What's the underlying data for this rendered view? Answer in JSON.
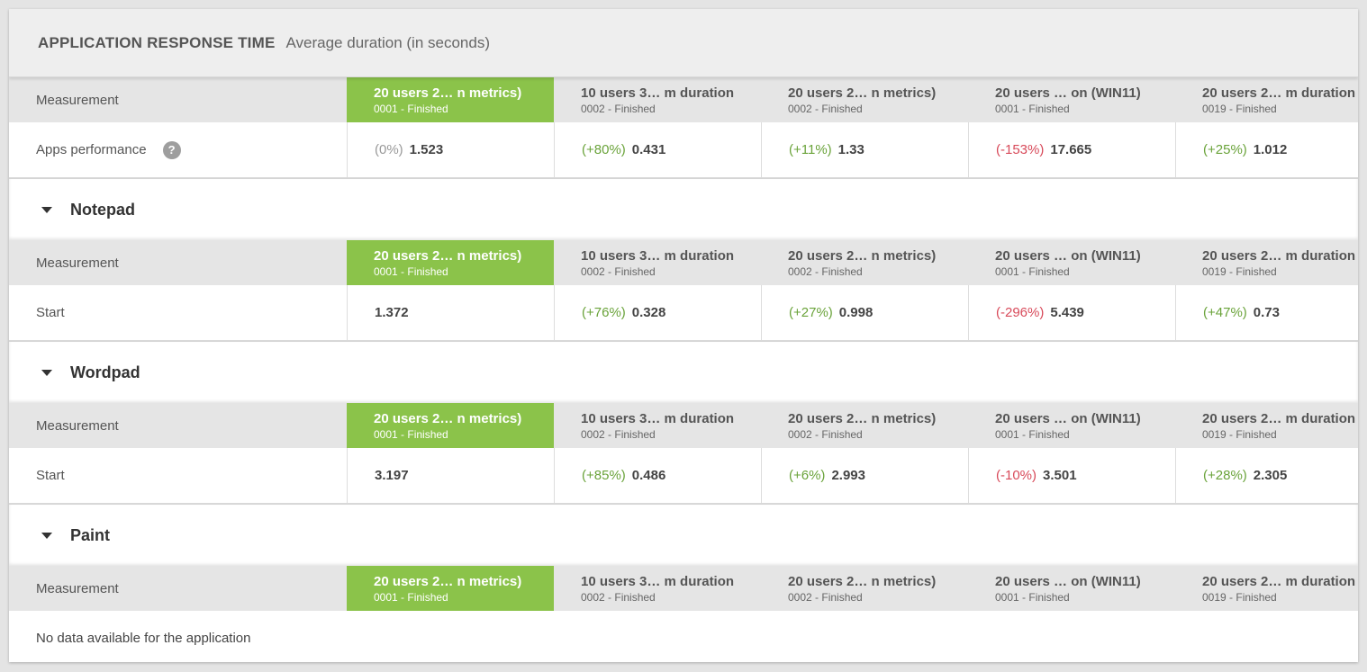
{
  "header": {
    "title": "APPLICATION RESPONSE TIME",
    "subtitle": "Average duration (in seconds)"
  },
  "measurement_label": "Measurement",
  "columns": [
    {
      "name": "20 users 2… n metrics)",
      "status": "0001 - Finished",
      "active": true
    },
    {
      "name": "10 users 3… m duration",
      "status": "0002 - Finished",
      "active": false
    },
    {
      "name": "20 users 2… n metrics)",
      "status": "0002 - Finished",
      "active": false
    },
    {
      "name": "20 users … on (WIN11)",
      "status": "0001 - Finished",
      "active": false
    },
    {
      "name": "20 users 2… m duration",
      "status": "0019 - Finished",
      "active": false
    }
  ],
  "summary": {
    "label": "Apps performance",
    "help_icon": "question-circle-icon",
    "cells": [
      {
        "delta": "(0%)",
        "value": "1.523",
        "tone": "neu"
      },
      {
        "delta": "(+80%)",
        "value": "0.431",
        "tone": "pos"
      },
      {
        "delta": "(+11%)",
        "value": "1.33",
        "tone": "pos"
      },
      {
        "delta": "(-153%)",
        "value": "17.665",
        "tone": "neg"
      },
      {
        "delta": "(+25%)",
        "value": "1.012",
        "tone": "pos"
      }
    ]
  },
  "sections": [
    {
      "name": "Notepad",
      "row_label": "Start",
      "cells": [
        {
          "delta": "",
          "value": "1.372",
          "tone": "neu"
        },
        {
          "delta": "(+76%)",
          "value": "0.328",
          "tone": "pos"
        },
        {
          "delta": "(+27%)",
          "value": "0.998",
          "tone": "pos"
        },
        {
          "delta": "(-296%)",
          "value": "5.439",
          "tone": "neg"
        },
        {
          "delta": "(+47%)",
          "value": "0.73",
          "tone": "pos"
        }
      ]
    },
    {
      "name": "Wordpad",
      "row_label": "Start",
      "cells": [
        {
          "delta": "",
          "value": "3.197",
          "tone": "neu"
        },
        {
          "delta": "(+85%)",
          "value": "0.486",
          "tone": "pos"
        },
        {
          "delta": "(+6%)",
          "value": "2.993",
          "tone": "pos"
        },
        {
          "delta": "(-10%)",
          "value": "3.501",
          "tone": "neg"
        },
        {
          "delta": "(+28%)",
          "value": "2.305",
          "tone": "pos"
        }
      ]
    },
    {
      "name": "Paint",
      "no_data": "No data available for the application"
    }
  ],
  "colors": {
    "active_column": "#8bc34a",
    "positive": "#6aa33a",
    "negative": "#d84a5a",
    "neutral": "#999999"
  }
}
